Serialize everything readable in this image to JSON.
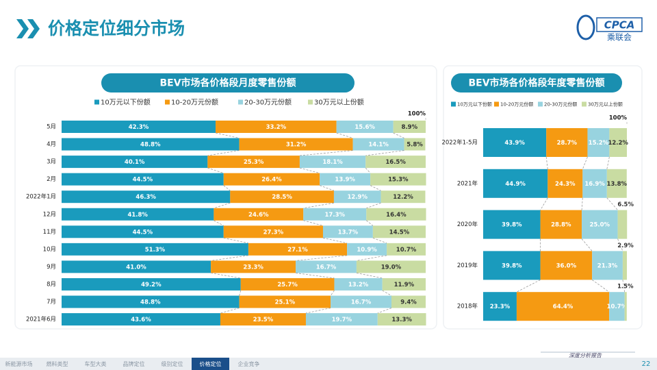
{
  "header": {
    "title": "价格定位细分市场",
    "logo": "CPCA",
    "logo_sub": "乘联会"
  },
  "chart_data": [
    {
      "type": "bar",
      "stacked": true,
      "title": "BEV市场各价格段月度零售份额",
      "categories": [
        "5月",
        "4月",
        "3月",
        "2月",
        "2022年1月",
        "12月",
        "11月",
        "10月",
        "9月",
        "8月",
        "7月",
        "2021年6月"
      ],
      "xlim": [
        0,
        100
      ],
      "xticks": [
        {
          "value": 100,
          "label": "100%"
        }
      ],
      "series": [
        {
          "name": "10万元以下份额",
          "color": "#1a9bbd",
          "values": [
            42.3,
            48.8,
            40.1,
            44.5,
            46.3,
            41.8,
            44.5,
            51.3,
            41.0,
            49.2,
            48.8,
            43.6
          ],
          "value_labels": [
            "42.3%",
            "48.8%",
            "40.1%",
            "44.5%",
            "46.3%",
            "41.8%",
            "44.5%",
            "51.3%",
            "41.0%",
            "49.2%",
            "48.8%",
            "43.6%"
          ]
        },
        {
          "name": "10-20万元份额",
          "color": "#f59a12",
          "values": [
            33.2,
            31.2,
            25.3,
            26.4,
            28.5,
            24.6,
            27.3,
            27.1,
            23.3,
            25.7,
            25.1,
            23.5
          ],
          "value_labels": [
            "33.2%",
            "31.2%",
            "25.3%",
            "26.4%",
            "28.5%",
            "24.6%",
            "27.3%",
            "27.1%",
            "23.3%",
            "25.7%",
            "25.1%",
            "23.5%"
          ]
        },
        {
          "name": "20-30万元份额",
          "color": "#98d3df",
          "values": [
            15.6,
            14.1,
            18.1,
            13.9,
            12.9,
            17.3,
            13.7,
            10.9,
            16.7,
            13.2,
            16.7,
            19.7
          ],
          "value_labels": [
            "15.6%",
            "14.1%",
            "18.1%",
            "13.9%",
            "12.9%",
            "17.3%",
            "13.7%",
            "10.9%",
            "16.7%",
            "13.2%",
            "16.7%",
            "19.7%"
          ]
        },
        {
          "name": "30万元以上份额",
          "color": "#c9dca2",
          "values": [
            8.9,
            5.8,
            16.5,
            15.3,
            12.2,
            16.4,
            14.5,
            10.7,
            19.0,
            11.9,
            9.4,
            13.3
          ],
          "value_labels": [
            "8.9%",
            "5.8%",
            "16.5%",
            "15.3%",
            "12.2%",
            "16.4%",
            "14.5%",
            "10.7%",
            "19.0%",
            "11.9%",
            "9.4%",
            "13.3%"
          ]
        }
      ]
    },
    {
      "type": "bar",
      "stacked": true,
      "title": "BEV市场各价格段年度零售份额",
      "categories": [
        "2022年1-5月",
        "2021年",
        "2020年",
        "2019年",
        "2018年"
      ],
      "xlim": [
        0,
        100
      ],
      "xticks": [
        {
          "value": 100,
          "label": "100%"
        }
      ],
      "series": [
        {
          "name": "10万元以下份额",
          "color": "#1a9bbd",
          "values": [
            43.9,
            44.9,
            39.8,
            39.8,
            23.3
          ],
          "value_labels": [
            "43.9%",
            "44.9%",
            "39.8%",
            "39.8%",
            "23.3%"
          ]
        },
        {
          "name": "10-20万元份额",
          "color": "#f59a12",
          "values": [
            28.7,
            24.3,
            28.8,
            36.0,
            64.4
          ],
          "value_labels": [
            "28.7%",
            "24.3%",
            "28.8%",
            "36.0%",
            "64.4%"
          ]
        },
        {
          "name": "20-30万元份额",
          "color": "#98d3df",
          "values": [
            15.2,
            16.9,
            25.0,
            21.3,
            10.7
          ],
          "value_labels": [
            "15.2%",
            "16.9%",
            "25.0%",
            "21.3%",
            "10.7%"
          ]
        },
        {
          "name": "30万元以上份额",
          "color": "#c9dca2",
          "values": [
            12.2,
            13.8,
            6.5,
            2.9,
            1.5
          ],
          "value_labels": [
            "12.2%",
            "13.8%",
            "6.5%",
            "2.9%",
            "1.5%"
          ]
        }
      ]
    }
  ],
  "footer": {
    "tabs": [
      "新能源市场",
      "燃料类型",
      "车型大类",
      "品牌定位",
      "级别定位",
      "价格定位",
      "企业竞争"
    ],
    "active_tab": 5,
    "tagline": "深度分析报告",
    "page": "22"
  }
}
